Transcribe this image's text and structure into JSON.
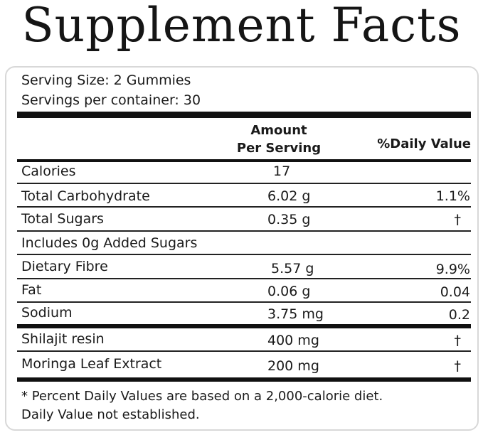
{
  "title": "Supplement Facts",
  "serving_size": "Serving Size: 2 Gummies",
  "servings_per_container": "Servings per container: 30",
  "header": {
    "amount_line1": "Amount",
    "amount_line2": "Per Serving",
    "daily_value": "%Daily Value"
  },
  "rows": [
    {
      "name": "Calories",
      "amount": "17",
      "dv": ""
    },
    {
      "name": "Total Carbohydrate",
      "amount": "6.02 g",
      "dv": "1.1%"
    },
    {
      "name": "Total Sugars",
      "amount": "0.35 g",
      "dv": "†"
    },
    {
      "name": "Includes 0g Added Sugars",
      "amount": "",
      "dv": ""
    },
    {
      "name": "Dietary Fibre",
      "amount": "5.57 g",
      "dv": "9.9%"
    },
    {
      "name": "Fat",
      "amount": "0.06 g",
      "dv": "0.04"
    },
    {
      "name": "Sodium",
      "amount": "3.75 mg",
      "dv": "0.2"
    },
    {
      "name": "Shilajit resin",
      "amount": "400 mg",
      "dv": "†"
    },
    {
      "name": "Moringa Leaf Extract",
      "amount": "200 mg",
      "dv": "†"
    }
  ],
  "footnote_1": "* Percent Daily Values are based on a 2,000-calorie diet.",
  "footnote_2": "Daily Value not established."
}
